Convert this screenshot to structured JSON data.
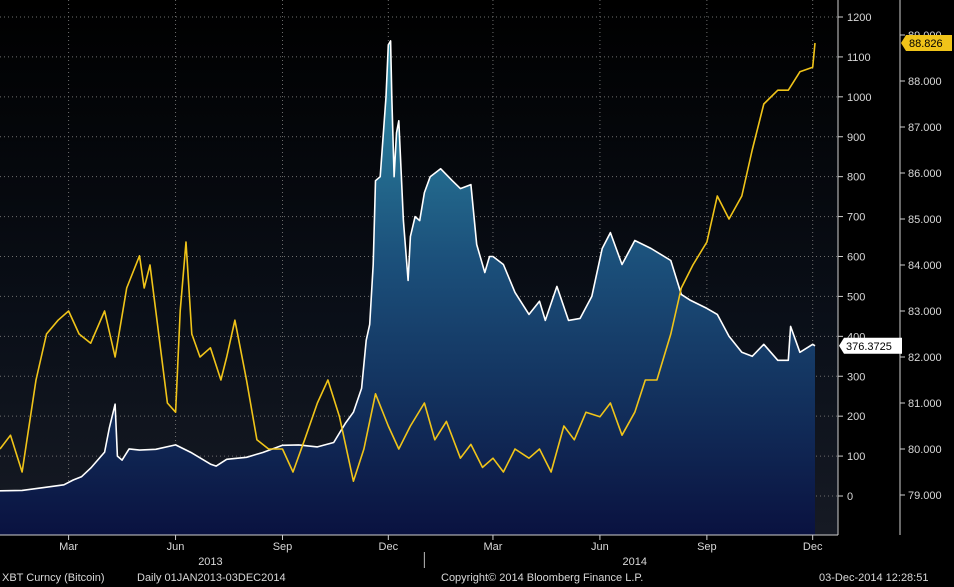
{
  "chart_data": {
    "type": "line",
    "ticker": "XBT Curncy (Bitcoin)",
    "frequency": "Daily 01JAN2013-03DEC2014",
    "copyright": "Copyright© 2014 Bloomberg Finance L.P.",
    "timestamp": "03-Dec-2014 12:28:51",
    "x_range": [
      "2013-01-01",
      "2014-12-03"
    ],
    "x_month_ticks": [
      {
        "date": "2013-03-01",
        "label": "Mar"
      },
      {
        "date": "2013-06-01",
        "label": "Jun"
      },
      {
        "date": "2013-09-01",
        "label": "Sep"
      },
      {
        "date": "2013-12-01",
        "label": "Dec"
      },
      {
        "date": "2014-03-01",
        "label": "Mar"
      },
      {
        "date": "2014-06-01",
        "label": "Jun"
      },
      {
        "date": "2014-09-01",
        "label": "Sep"
      },
      {
        "date": "2014-12-01",
        "label": "Dec"
      }
    ],
    "x_year_labels": [
      {
        "date": "2013-07-01",
        "label": "2013"
      },
      {
        "date": "2014-07-01",
        "label": "2014"
      }
    ],
    "y_left": {
      "ticks": [
        "1200",
        "1100",
        "1000",
        "900",
        "800",
        "700",
        "600",
        "500",
        "400",
        "300",
        "200",
        "100",
        "0"
      ],
      "range": [
        -100,
        1200
      ]
    },
    "y_right": {
      "ticks": [
        "89.000",
        "88.000",
        "87.000",
        "86.000",
        "85.000",
        "84.000",
        "83.000",
        "82.000",
        "81.000",
        "80.000",
        "79.000"
      ],
      "range": [
        78.1,
        89.0
      ]
    },
    "colors": {
      "bitcoin_line": "#ffffff",
      "bitcoin_fill_top": "#2f8fa8",
      "bitcoin_fill_bottom": "#0a1240",
      "gold_line": "#f0c419",
      "grid": "#7a7a7a",
      "last_gold_box": "#f0c419",
      "last_white_box": "#ffffff"
    },
    "series": [
      {
        "axis": "left",
        "last_value_label": "376.3725",
        "x": [
          "2013-01-01",
          "2013-01-20",
          "2013-02-10",
          "2013-02-25",
          "2013-03-05",
          "2013-03-12",
          "2013-03-20",
          "2013-04-01",
          "2013-04-05",
          "2013-04-10",
          "2013-04-12",
          "2013-04-16",
          "2013-04-22",
          "2013-05-01",
          "2013-05-15",
          "2013-06-01",
          "2013-06-15",
          "2013-07-01",
          "2013-07-06",
          "2013-07-15",
          "2013-08-01",
          "2013-08-15",
          "2013-09-01",
          "2013-09-15",
          "2013-10-01",
          "2013-10-15",
          "2013-10-25",
          "2013-11-01",
          "2013-11-08",
          "2013-11-12",
          "2013-11-15",
          "2013-11-18",
          "2013-11-20",
          "2013-11-24",
          "2013-11-29",
          "2013-12-01",
          "2013-12-03",
          "2013-12-04",
          "2013-12-06",
          "2013-12-08",
          "2013-12-10",
          "2013-12-14",
          "2013-12-18",
          "2013-12-20",
          "2013-12-24",
          "2013-12-28",
          "2014-01-01",
          "2014-01-06",
          "2014-01-15",
          "2014-01-25",
          "2014-02-01",
          "2014-02-10",
          "2014-02-15",
          "2014-02-22",
          "2014-02-26",
          "2014-03-01",
          "2014-03-10",
          "2014-03-20",
          "2014-04-01",
          "2014-04-10",
          "2014-04-15",
          "2014-04-25",
          "2014-05-05",
          "2014-05-15",
          "2014-05-25",
          "2014-06-03",
          "2014-06-10",
          "2014-06-20",
          "2014-07-01",
          "2014-07-15",
          "2014-08-01",
          "2014-08-10",
          "2014-08-18",
          "2014-09-01",
          "2014-09-10",
          "2014-09-20",
          "2014-10-01",
          "2014-10-10",
          "2014-10-20",
          "2014-11-01",
          "2014-11-10",
          "2014-11-12",
          "2014-11-20",
          "2014-12-01",
          "2014-12-03"
        ],
        "y": [
          13,
          14,
          22,
          28,
          40,
          48,
          70,
          110,
          170,
          230,
          100,
          90,
          118,
          115,
          117,
          128,
          108,
          80,
          75,
          92,
          97,
          109,
          127,
          128,
          123,
          134,
          182,
          210,
          270,
          390,
          430,
          580,
          790,
          800,
          1000,
          1130,
          1140,
          1000,
          800,
          910,
          940,
          690,
          540,
          650,
          700,
          690,
          760,
          800,
          820,
          790,
          770,
          780,
          630,
          560,
          600,
          600,
          580,
          510,
          455,
          488,
          440,
          525,
          440,
          445,
          500,
          620,
          660,
          580,
          640,
          620,
          590,
          505,
          490,
          470,
          455,
          400,
          360,
          350,
          380,
          340,
          340,
          425,
          360,
          380,
          376.3725
        ]
      },
      {
        "axis": "right",
        "last_value_label": "88.826",
        "x": [
          "2013-01-01",
          "2013-01-10",
          "2013-01-20",
          "2013-02-01",
          "2013-02-10",
          "2013-02-20",
          "2013-03-01",
          "2013-03-10",
          "2013-03-20",
          "2013-04-01",
          "2013-04-10",
          "2013-04-20",
          "2013-05-01",
          "2013-05-05",
          "2013-05-10",
          "2013-05-15",
          "2013-05-20",
          "2013-05-25",
          "2013-06-01",
          "2013-06-05",
          "2013-06-10",
          "2013-06-15",
          "2013-06-22",
          "2013-07-01",
          "2013-07-10",
          "2013-07-15",
          "2013-07-22",
          "2013-08-01",
          "2013-08-10",
          "2013-08-20",
          "2013-09-01",
          "2013-09-10",
          "2013-09-20",
          "2013-10-01",
          "2013-10-10",
          "2013-10-20",
          "2013-11-01",
          "2013-11-10",
          "2013-11-20",
          "2013-12-01",
          "2013-12-10",
          "2013-12-20",
          "2014-01-01",
          "2014-01-10",
          "2014-01-20",
          "2014-02-01",
          "2014-02-10",
          "2014-02-20",
          "2014-03-01",
          "2014-03-10",
          "2014-03-20",
          "2014-04-01",
          "2014-04-10",
          "2014-04-20",
          "2014-05-01",
          "2014-05-10",
          "2014-05-20",
          "2014-06-01",
          "2014-06-10",
          "2014-06-20",
          "2014-07-01",
          "2014-07-10",
          "2014-07-20",
          "2014-08-01",
          "2014-08-10",
          "2014-08-20",
          "2014-09-01",
          "2014-09-10",
          "2014-09-20",
          "2014-10-01",
          "2014-10-10",
          "2014-10-20",
          "2014-11-01",
          "2014-11-10",
          "2014-11-20",
          "2014-12-01",
          "2014-12-03"
        ],
        "y": [
          80.0,
          80.3,
          79.5,
          81.5,
          82.5,
          82.8,
          83.0,
          82.5,
          82.3,
          83.0,
          82.0,
          83.5,
          84.2,
          83.5,
          84.0,
          83.0,
          82.0,
          81.0,
          80.8,
          83.0,
          84.5,
          82.5,
          82.0,
          82.2,
          81.5,
          82.0,
          82.8,
          81.5,
          80.2,
          80.0,
          80.0,
          79.5,
          80.2,
          81.0,
          81.5,
          80.7,
          79.3,
          80.0,
          81.2,
          80.5,
          80.0,
          80.5,
          81.0,
          80.2,
          80.6,
          79.8,
          80.1,
          79.6,
          79.8,
          79.5,
          80.0,
          79.8,
          80.0,
          79.5,
          80.5,
          80.2,
          80.8,
          80.7,
          81.0,
          80.3,
          80.8,
          81.5,
          81.5,
          82.5,
          83.5,
          84.0,
          84.5,
          85.5,
          85.0,
          85.5,
          86.5,
          87.5,
          87.8,
          87.8,
          88.2,
          88.3,
          88.826
        ]
      }
    ]
  }
}
